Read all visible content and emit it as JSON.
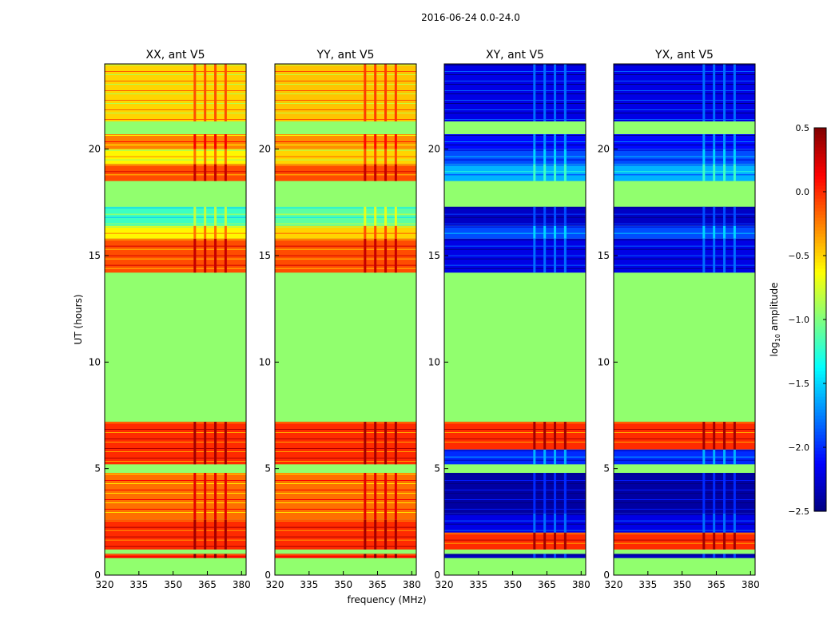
{
  "figure": {
    "suptitle": "2016-06-24 0.0-24.0",
    "xlabel": "frequency (MHz)",
    "ylabel": "UT (hours)",
    "colorbar_label": "log",
    "colorbar_label_sub": "10",
    "colorbar_label_suffix": " amplitude"
  },
  "chart_data": [
    {
      "type": "heatmap",
      "title": "XX, ant V5",
      "xlabel": "frequency (MHz)",
      "ylabel": "UT (hours)",
      "xlim": [
        320,
        382
      ],
      "ylim": [
        0,
        24
      ],
      "xticks": [
        320,
        335,
        350,
        365,
        380
      ],
      "yticks": [
        0,
        5,
        10,
        15,
        20
      ],
      "rfi_band_mhz": [
        359,
        377
      ],
      "bands": [
        {
          "t0": 0.0,
          "t1": 0.8,
          "v": -0.95
        },
        {
          "t0": 0.8,
          "t1": 1.0,
          "v": 0.1
        },
        {
          "t0": 1.0,
          "t1": 1.2,
          "v": -0.95
        },
        {
          "t0": 1.2,
          "t1": 2.6,
          "v": 0.0
        },
        {
          "t0": 2.6,
          "t1": 4.8,
          "v": -0.2
        },
        {
          "t0": 4.8,
          "t1": 5.2,
          "v": -0.95
        },
        {
          "t0": 5.2,
          "t1": 7.2,
          "v": 0.0
        },
        {
          "t0": 7.2,
          "t1": 14.2,
          "v": -0.95
        },
        {
          "t0": 14.2,
          "t1": 15.8,
          "v": -0.1
        },
        {
          "t0": 15.8,
          "t1": 16.4,
          "v": -0.6
        },
        {
          "t0": 16.4,
          "t1": 17.3,
          "v": -1.2
        },
        {
          "t0": 17.3,
          "t1": 18.5,
          "v": -0.95
        },
        {
          "t0": 18.5,
          "t1": 19.3,
          "v": -0.1
        },
        {
          "t0": 19.3,
          "t1": 20.0,
          "v": -0.6
        },
        {
          "t0": 20.0,
          "t1": 20.7,
          "v": -0.25
        },
        {
          "t0": 20.7,
          "t1": 21.3,
          "v": -0.95
        },
        {
          "t0": 21.3,
          "t1": 24.0,
          "v": -0.5
        }
      ]
    },
    {
      "type": "heatmap",
      "title": "YY, ant V5",
      "xlabel": "frequency (MHz)",
      "ylabel": "UT (hours)",
      "xlim": [
        320,
        382
      ],
      "ylim": [
        0,
        24
      ],
      "xticks": [
        320,
        335,
        350,
        365,
        380
      ],
      "yticks": [
        0,
        5,
        10,
        15,
        20
      ],
      "rfi_band_mhz": [
        359,
        377
      ],
      "bands": [
        {
          "t0": 0.0,
          "t1": 0.8,
          "v": -0.95
        },
        {
          "t0": 0.8,
          "t1": 1.0,
          "v": 0.1
        },
        {
          "t0": 1.0,
          "t1": 1.2,
          "v": -0.95
        },
        {
          "t0": 1.2,
          "t1": 2.6,
          "v": 0.0
        },
        {
          "t0": 2.6,
          "t1": 4.8,
          "v": -0.2
        },
        {
          "t0": 4.8,
          "t1": 5.2,
          "v": -0.95
        },
        {
          "t0": 5.2,
          "t1": 7.2,
          "v": 0.0
        },
        {
          "t0": 7.2,
          "t1": 14.2,
          "v": -0.95
        },
        {
          "t0": 14.2,
          "t1": 15.8,
          "v": -0.1
        },
        {
          "t0": 15.8,
          "t1": 16.4,
          "v": -0.5
        },
        {
          "t0": 16.4,
          "t1": 17.3,
          "v": -1.1
        },
        {
          "t0": 17.3,
          "t1": 18.5,
          "v": -0.95
        },
        {
          "t0": 18.5,
          "t1": 19.3,
          "v": -0.1
        },
        {
          "t0": 19.3,
          "t1": 20.0,
          "v": -0.5
        },
        {
          "t0": 20.0,
          "t1": 20.7,
          "v": -0.3
        },
        {
          "t0": 20.7,
          "t1": 21.3,
          "v": -0.95
        },
        {
          "t0": 21.3,
          "t1": 24.0,
          "v": -0.45
        }
      ]
    },
    {
      "type": "heatmap",
      "title": "XY, ant V5",
      "xlabel": "frequency (MHz)",
      "ylabel": "UT (hours)",
      "xlim": [
        320,
        382
      ],
      "ylim": [
        0,
        24
      ],
      "xticks": [
        320,
        335,
        350,
        365,
        380
      ],
      "yticks": [
        0,
        5,
        10,
        15,
        20
      ],
      "rfi_band_mhz": [
        359,
        377
      ],
      "bands": [
        {
          "t0": 0.0,
          "t1": 0.8,
          "v": -0.95
        },
        {
          "t0": 0.8,
          "t1": 1.0,
          "v": -2.3
        },
        {
          "t0": 1.0,
          "t1": 1.2,
          "v": -0.95
        },
        {
          "t0": 1.2,
          "t1": 2.0,
          "v": 0.0
        },
        {
          "t0": 2.0,
          "t1": 2.9,
          "v": -2.2
        },
        {
          "t0": 2.9,
          "t1": 4.8,
          "v": -2.4
        },
        {
          "t0": 4.8,
          "t1": 5.2,
          "v": -0.95
        },
        {
          "t0": 5.2,
          "t1": 5.9,
          "v": -2.0
        },
        {
          "t0": 5.9,
          "t1": 7.2,
          "v": 0.0
        },
        {
          "t0": 7.2,
          "t1": 14.2,
          "v": -0.95
        },
        {
          "t0": 14.2,
          "t1": 15.8,
          "v": -2.2
        },
        {
          "t0": 15.8,
          "t1": 16.4,
          "v": -1.9
        },
        {
          "t0": 16.4,
          "t1": 17.3,
          "v": -2.3
        },
        {
          "t0": 17.3,
          "t1": 18.5,
          "v": -0.95
        },
        {
          "t0": 18.5,
          "t1": 19.3,
          "v": -1.6
        },
        {
          "t0": 19.3,
          "t1": 20.0,
          "v": -1.9
        },
        {
          "t0": 20.0,
          "t1": 20.7,
          "v": -2.1
        },
        {
          "t0": 20.7,
          "t1": 21.3,
          "v": -0.95
        },
        {
          "t0": 21.3,
          "t1": 24.0,
          "v": -2.2
        }
      ]
    },
    {
      "type": "heatmap",
      "title": "YX, ant V5",
      "xlabel": "frequency (MHz)",
      "ylabel": "UT (hours)",
      "xlim": [
        320,
        382
      ],
      "ylim": [
        0,
        24
      ],
      "xticks": [
        320,
        335,
        350,
        365,
        380
      ],
      "yticks": [
        0,
        5,
        10,
        15,
        20
      ],
      "rfi_band_mhz": [
        359,
        377
      ],
      "bands": [
        {
          "t0": 0.0,
          "t1": 0.8,
          "v": -0.95
        },
        {
          "t0": 0.8,
          "t1": 1.0,
          "v": -2.3
        },
        {
          "t0": 1.0,
          "t1": 1.2,
          "v": -0.95
        },
        {
          "t0": 1.2,
          "t1": 2.0,
          "v": 0.0
        },
        {
          "t0": 2.0,
          "t1": 2.9,
          "v": -2.2
        },
        {
          "t0": 2.9,
          "t1": 4.8,
          "v": -2.4
        },
        {
          "t0": 4.8,
          "t1": 5.2,
          "v": -0.95
        },
        {
          "t0": 5.2,
          "t1": 5.9,
          "v": -2.0
        },
        {
          "t0": 5.9,
          "t1": 7.2,
          "v": 0.0
        },
        {
          "t0": 7.2,
          "t1": 14.2,
          "v": -0.95
        },
        {
          "t0": 14.2,
          "t1": 15.8,
          "v": -2.2
        },
        {
          "t0": 15.8,
          "t1": 16.4,
          "v": -1.9
        },
        {
          "t0": 16.4,
          "t1": 17.3,
          "v": -2.3
        },
        {
          "t0": 17.3,
          "t1": 18.5,
          "v": -0.95
        },
        {
          "t0": 18.5,
          "t1": 19.3,
          "v": -1.6
        },
        {
          "t0": 19.3,
          "t1": 20.0,
          "v": -1.9
        },
        {
          "t0": 20.0,
          "t1": 20.7,
          "v": -2.1
        },
        {
          "t0": 20.7,
          "t1": 21.3,
          "v": -0.95
        },
        {
          "t0": 21.3,
          "t1": 24.0,
          "v": -2.2
        }
      ]
    },
    {
      "type": "colorbar",
      "label": "log10 amplitude",
      "range": [
        -2.5,
        0.5
      ],
      "ticks": [
        0.5,
        0.0,
        -0.5,
        -1.0,
        -1.5,
        -2.0,
        -2.5
      ],
      "tick_labels": [
        "0.5",
        "0.0",
        "−0.5",
        "−1.0",
        "−1.5",
        "−2.0",
        "−2.5"
      ]
    }
  ]
}
